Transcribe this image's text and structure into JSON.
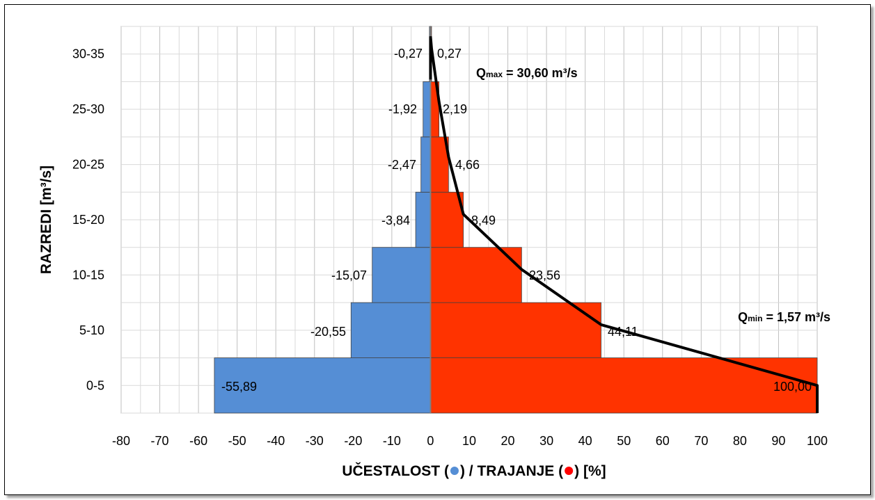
{
  "chart_data": {
    "type": "bar",
    "orientation": "horizontal",
    "categories": [
      "0-5",
      "5-10",
      "10-15",
      "15-20",
      "20-25",
      "25-30",
      "30-35"
    ],
    "series": [
      {
        "values": [
          -55.89,
          -20.55,
          -15.07,
          -3.84,
          -2.47,
          -1.92,
          -0.27
        ],
        "labels": [
          "-55,89",
          "-20,55",
          "-15,07",
          "-3,84",
          "-2,47",
          "-1,92",
          "-0,27"
        ],
        "color": "#558ED5"
      },
      {
        "values": [
          100.0,
          44.11,
          23.56,
          8.49,
          4.66,
          2.19,
          0.27
        ],
        "labels": [
          "100,00",
          "44,11",
          "23,56",
          "8,49",
          "4,66",
          "2,19",
          "0,27"
        ],
        "color": "#FF3300"
      }
    ],
    "duration_curve": {
      "color": "#000000",
      "points": [
        [
          0,
          34.1
        ],
        [
          0.27,
          33.0
        ],
        [
          2.19,
          28.2
        ],
        [
          4.66,
          23.2
        ],
        [
          8.49,
          18.0
        ],
        [
          23.56,
          13.0
        ],
        [
          44.11,
          8.0
        ],
        [
          100.0,
          2.5
        ],
        [
          100.0,
          0
        ]
      ]
    },
    "xlim": [
      -80,
      100
    ],
    "xticks": [
      -80,
      -70,
      -60,
      -50,
      -40,
      -30,
      -20,
      -10,
      0,
      10,
      20,
      30,
      40,
      50,
      60,
      70,
      80,
      90,
      100
    ],
    "ylim": [
      0,
      35
    ],
    "xlabel_parts": [
      "UČESTALOST (",
      ") / TRAJANJE (",
      ") [%]"
    ],
    "xlabel_dot_colors": [
      "#558ED5",
      "#FF0000"
    ],
    "ylabel": "RAZREDI [m³/s]",
    "annotations": [
      {
        "main": "Q",
        "sub": "max",
        "rest": " = 30,60 m³/s"
      },
      {
        "main": "Q",
        "sub": "min",
        "rest": " = 1,57 m³/s"
      }
    ],
    "grid": true
  }
}
